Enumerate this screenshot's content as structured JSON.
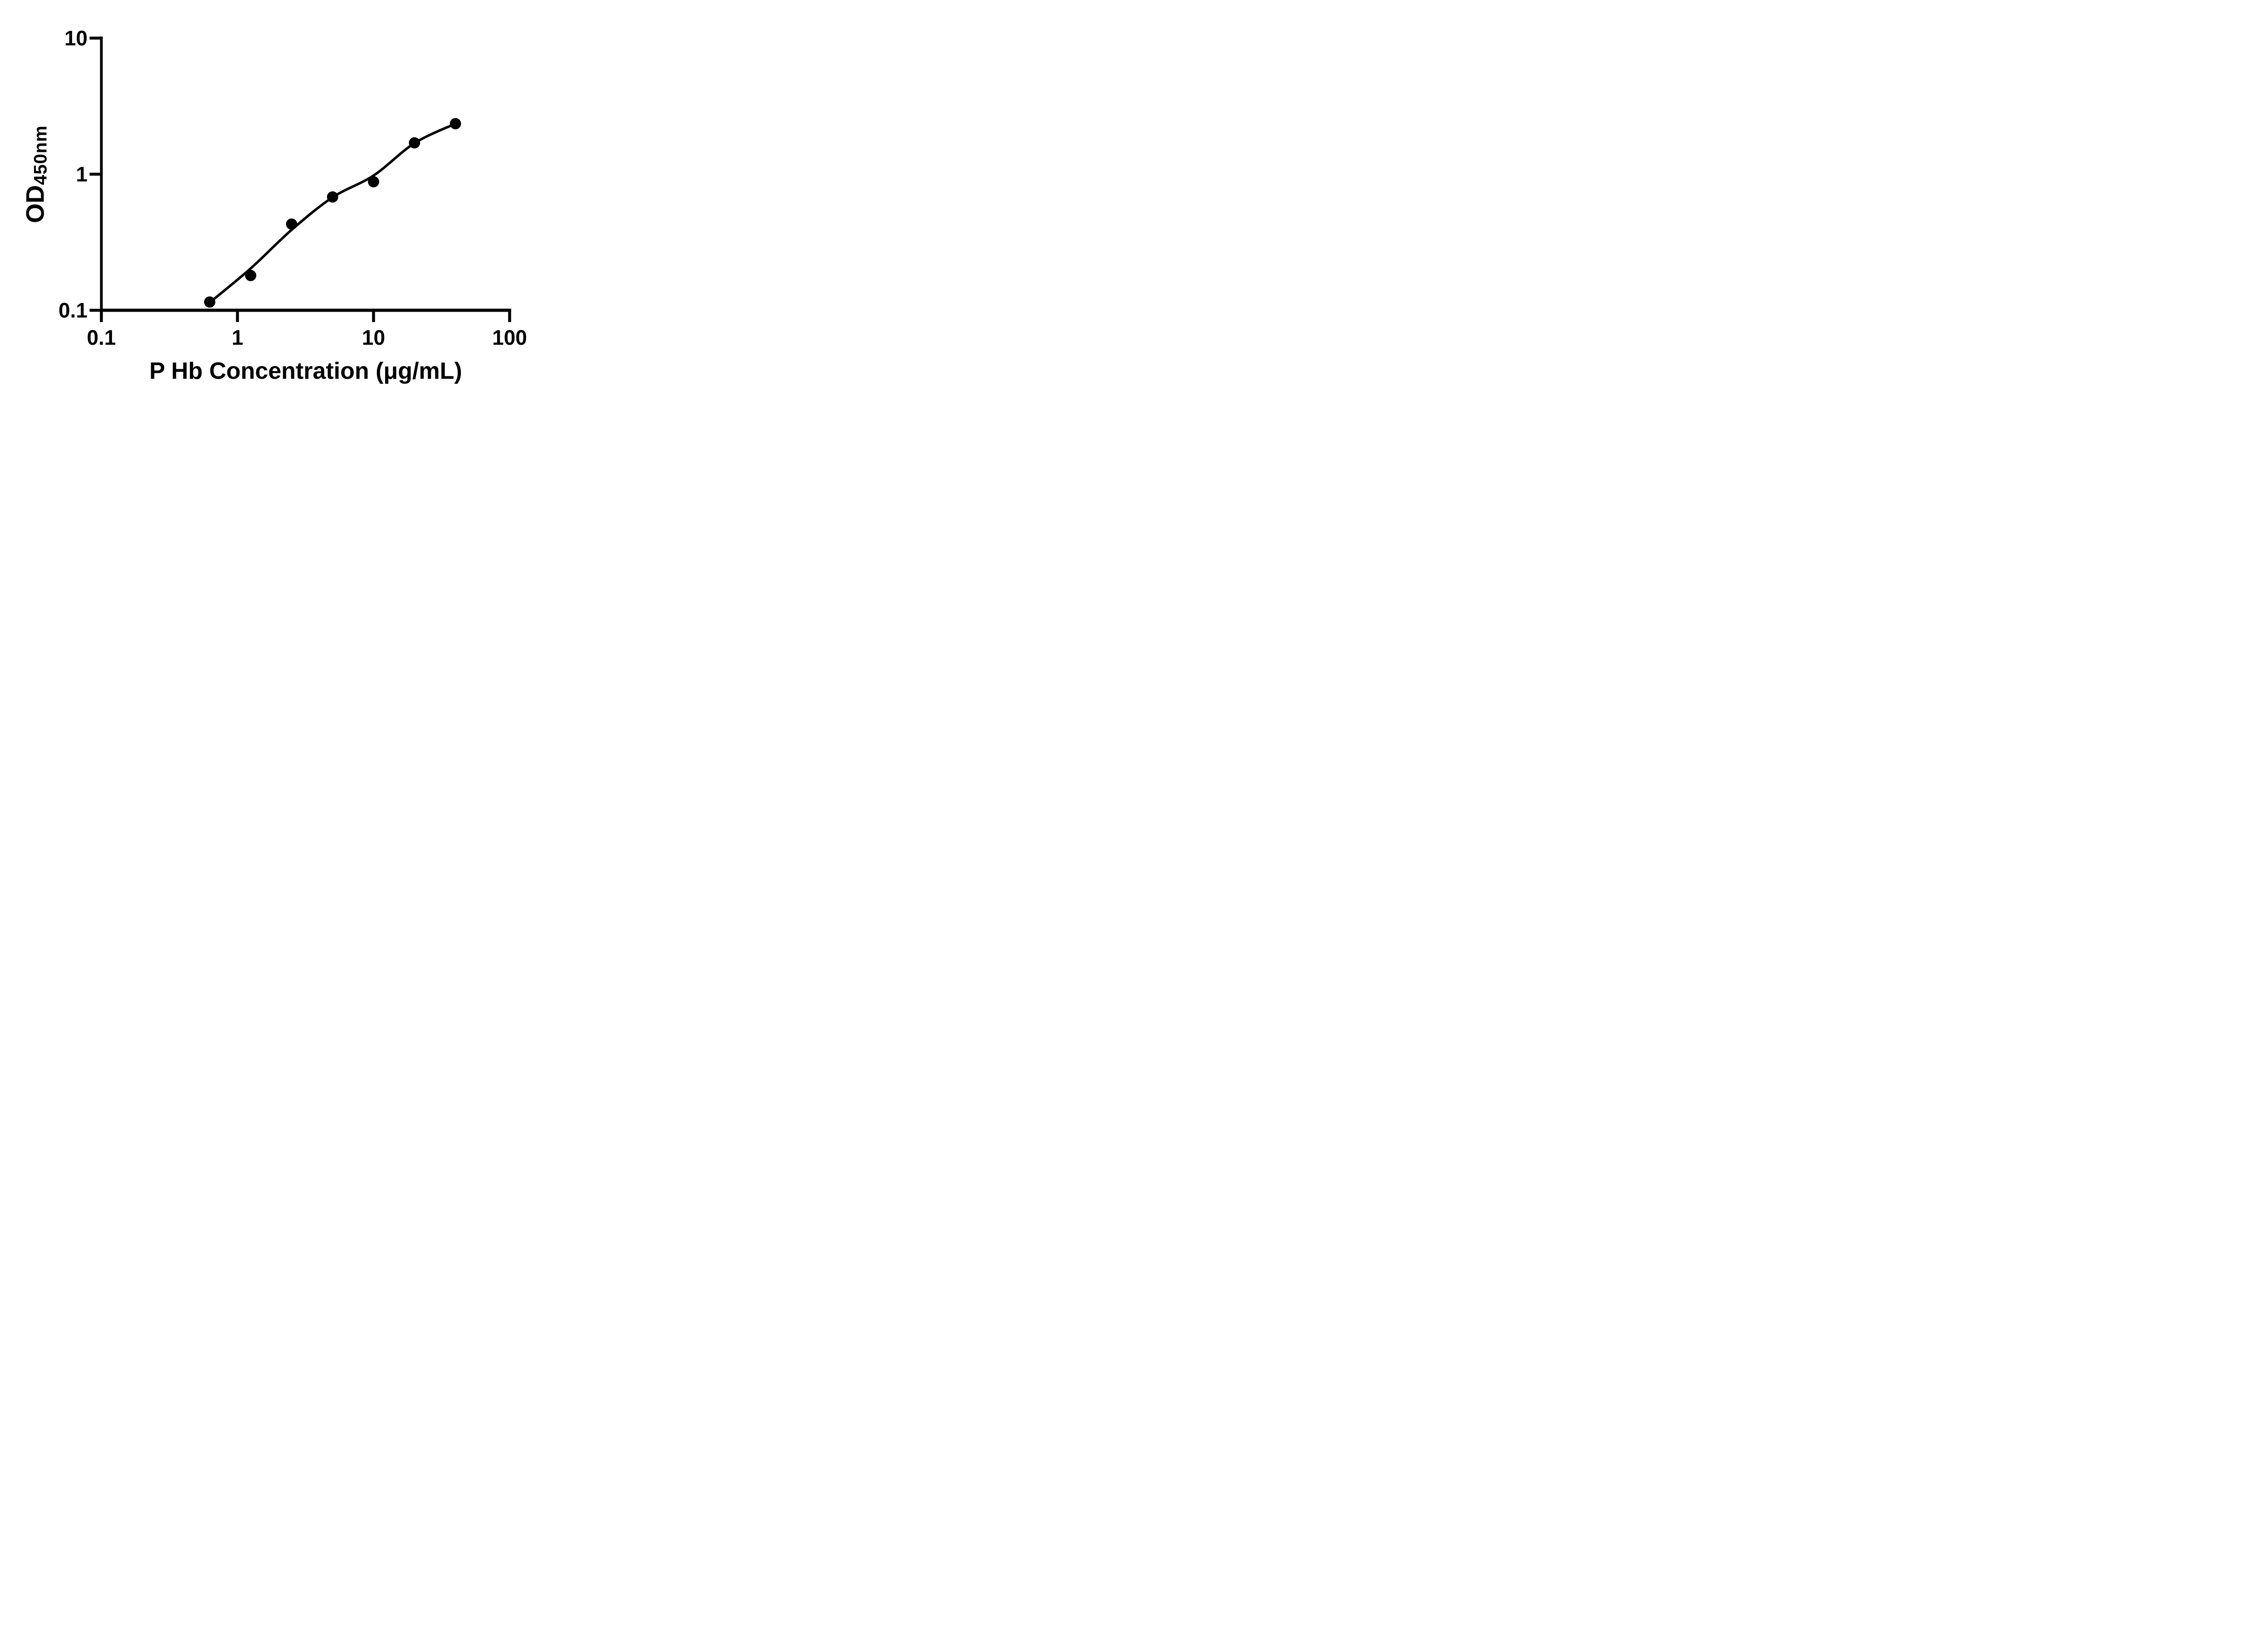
{
  "figure": {
    "background": "#ffffff",
    "ink": "#000000"
  },
  "chart_data": {
    "type": "scatter",
    "title": "",
    "xlabel": "P Hb Concentration (μg/mL)",
    "ylabel": "OD450nm",
    "ylabel_main": "OD",
    "ylabel_sub": "450nm",
    "x_scale": "log10",
    "y_scale": "log10",
    "xlim": [
      0.1,
      100
    ],
    "ylim": [
      0.1,
      10
    ],
    "grid": "off",
    "legend": "none",
    "marker": "filled-circle",
    "marker_color": "#000000",
    "line_color": "#000000",
    "x_ticks": [
      {
        "value": 0.1,
        "label": "0.1"
      },
      {
        "value": 1,
        "label": "1"
      },
      {
        "value": 10,
        "label": "10"
      },
      {
        "value": 100,
        "label": "100"
      }
    ],
    "y_ticks": [
      {
        "value": 0.1,
        "label": "0.1"
      },
      {
        "value": 1,
        "label": "1"
      },
      {
        "value": 10,
        "label": "10"
      }
    ],
    "series": [
      {
        "name": "standard-points",
        "points": [
          {
            "x": 0.625,
            "y": 0.115
          },
          {
            "x": 1.25,
            "y": 0.18
          },
          {
            "x": 2.5,
            "y": 0.43
          },
          {
            "x": 5,
            "y": 0.68
          },
          {
            "x": 10,
            "y": 0.88
          },
          {
            "x": 20,
            "y": 1.7
          },
          {
            "x": 40,
            "y": 2.35
          }
        ]
      }
    ],
    "fit_curve": {
      "name": "fitted-standard-curve",
      "points": [
        {
          "x": 0.625,
          "y": 0.114
        },
        {
          "x": 1.25,
          "y": 0.203
        },
        {
          "x": 2.5,
          "y": 0.39
        },
        {
          "x": 5,
          "y": 0.676
        },
        {
          "x": 10,
          "y": 0.977
        },
        {
          "x": 20,
          "y": 1.69
        },
        {
          "x": 40,
          "y": 2.35
        }
      ]
    }
  }
}
